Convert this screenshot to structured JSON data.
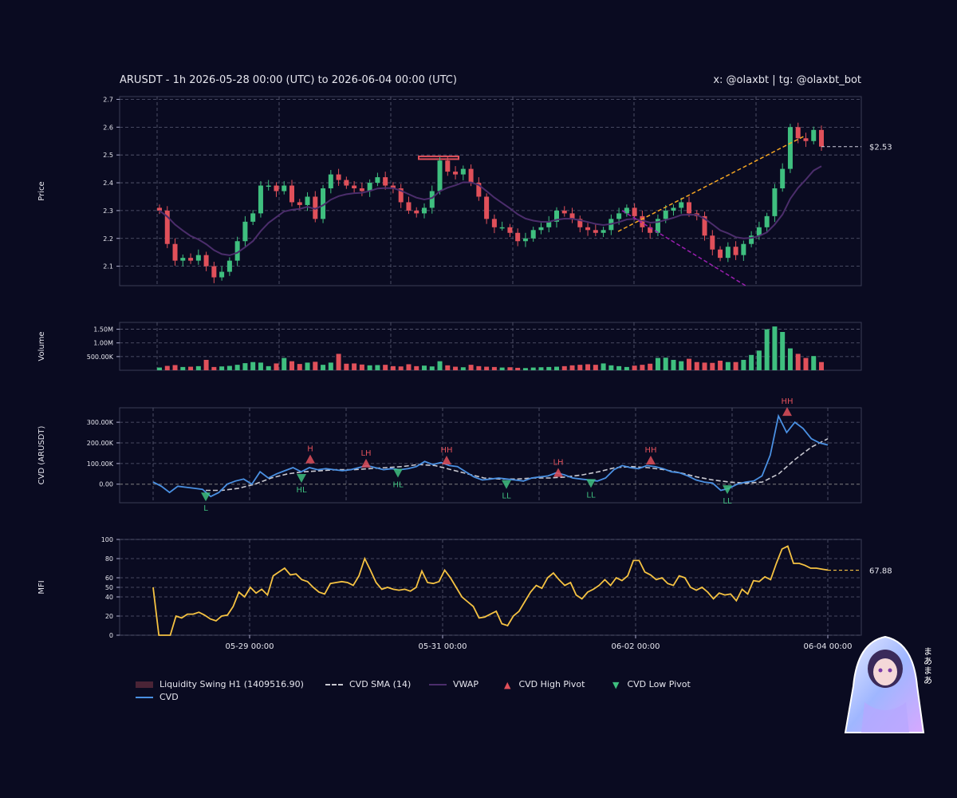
{
  "header": {
    "title": "ARUSDT - 1h 2026-05-28 00:00 (UTC) to 2026-06-04 00:00 (UTC)",
    "handle": "x: @olaxbt | tg: @olaxbt_bot"
  },
  "colors": {
    "background": "#0a0b21",
    "up": "#3fbf7f",
    "down": "#e0505a",
    "vwap": "#4b2d6b",
    "cvd": "#4a90e2",
    "cvd_sma": "#c8c8d0",
    "mfi": "#f5c242",
    "trend_up": "#f5a623",
    "trend_down": "#9b1fb0",
    "liquidity": "#6a2c3c"
  },
  "legend": [
    {
      "key": "liquidity",
      "label": "Liquidity Swing H1 (1409516.90)"
    },
    {
      "key": "cvd",
      "label": "CVD"
    },
    {
      "key": "cvd_sma",
      "label": "CVD SMA (14)"
    },
    {
      "key": "vwap",
      "label": "VWAP"
    },
    {
      "key": "cvd_high",
      "label": "CVD High Pivot"
    },
    {
      "key": "cvd_low",
      "label": "CVD Low Pivot"
    }
  ],
  "avatar_text": "まあまあ",
  "chart_data": [
    {
      "type": "candlestick",
      "panel": "price",
      "ylabel": "Price",
      "ylim": [
        2.03,
        2.71
      ],
      "yticks": [
        2.1,
        2.2,
        2.3,
        2.4,
        2.5,
        2.6,
        2.7
      ],
      "last_price_label": "$2.53",
      "last_price": 2.53,
      "x_start": "2026-05-28 00:00",
      "x_end": "2026-06-04 00:00",
      "interval_hours": 1,
      "closes_sample": [
        2.3,
        2.18,
        2.12,
        2.13,
        2.12,
        2.14,
        2.1,
        2.06,
        2.08,
        2.12,
        2.19,
        2.26,
        2.29,
        2.39,
        2.39,
        2.37,
        2.39,
        2.33,
        2.32,
        2.35,
        2.27,
        2.38,
        2.43,
        2.41,
        2.39,
        2.38,
        2.37,
        2.4,
        2.42,
        2.39,
        2.38,
        2.33,
        2.3,
        2.29,
        2.31,
        2.37,
        2.48,
        2.44,
        2.43,
        2.45,
        2.4,
        2.35,
        2.27,
        2.24,
        2.24,
        2.22,
        2.19,
        2.2,
        2.23,
        2.24,
        2.26,
        2.3,
        2.29,
        2.27,
        2.24,
        2.23,
        2.22,
        2.23,
        2.27,
        2.29,
        2.31,
        2.28,
        2.24,
        2.22,
        2.27,
        2.3,
        2.31,
        2.33,
        2.29,
        2.28,
        2.21,
        2.16,
        2.13,
        2.17,
        2.14,
        2.18,
        2.21,
        2.24,
        2.28,
        2.38,
        2.45,
        2.6,
        2.56,
        2.55,
        2.59,
        2.53
      ]
    },
    {
      "type": "bar",
      "panel": "volume",
      "ylabel": "Volume",
      "yticks_labels": [
        "500.00K",
        "1.00M",
        "1.50M"
      ],
      "yticks": [
        500000,
        1000000,
        1500000
      ],
      "ylim": [
        0,
        1750000
      ],
      "values_sample": [
        100000,
        160000,
        190000,
        120000,
        130000,
        150000,
        380000,
        120000,
        140000,
        160000,
        200000,
        260000,
        300000,
        280000,
        150000,
        250000,
        450000,
        330000,
        230000,
        280000,
        310000,
        200000,
        280000,
        600000,
        240000,
        250000,
        210000,
        180000,
        190000,
        200000,
        150000,
        140000,
        220000,
        150000,
        170000,
        140000,
        330000,
        180000,
        130000,
        110000,
        200000,
        150000,
        130000,
        120000,
        100000,
        110000,
        90000,
        80000,
        100000,
        110000,
        120000,
        130000,
        150000,
        180000,
        200000,
        220000,
        200000,
        250000,
        180000,
        150000,
        120000,
        170000,
        200000,
        240000,
        450000,
        460000,
        380000,
        330000,
        420000,
        300000,
        280000,
        270000,
        350000,
        300000,
        300000,
        380000,
        560000,
        720000,
        1500000,
        1600000,
        1400000,
        800000,
        600000,
        450000,
        520000,
        300000
      ]
    },
    {
      "type": "line",
      "panel": "cvd",
      "ylabel": "CVD (ARUSDT)",
      "yticks_labels": [
        "0.00",
        "100.00K",
        "200.00K",
        "300.00K"
      ],
      "yticks": [
        0,
        100000,
        200000,
        300000
      ],
      "ylim": [
        -90000,
        370000
      ],
      "series": [
        {
          "name": "CVD",
          "values_sample": [
            10000,
            -10000,
            -40000,
            -10000,
            -15000,
            -20000,
            -25000,
            -60000,
            -40000,
            0,
            15000,
            25000,
            0,
            60000,
            30000,
            50000,
            65000,
            80000,
            60000,
            80000,
            70000,
            75000,
            70000,
            65000,
            70000,
            80000,
            90000,
            80000,
            70000,
            75000,
            70000,
            75000,
            85000,
            110000,
            95000,
            105000,
            90000,
            85000,
            60000,
            35000,
            20000,
            25000,
            30000,
            25000,
            20000,
            15000,
            30000,
            35000,
            40000,
            55000,
            45000,
            30000,
            25000,
            20000,
            15000,
            30000,
            70000,
            90000,
            80000,
            75000,
            90000,
            85000,
            75000,
            60000,
            55000,
            40000,
            20000,
            10000,
            5000,
            -30000,
            -20000,
            0,
            10000,
            15000,
            40000,
            140000,
            330000,
            250000,
            300000,
            270000,
            220000,
            200000,
            190000
          ]
        },
        {
          "name": "CVD SMA (14)",
          "values_sample": [
            -30000,
            -30000,
            -20000,
            0,
            30000,
            50000,
            60000,
            65000,
            70000,
            70000,
            75000,
            80000,
            85000,
            95000,
            90000,
            70000,
            50000,
            30000,
            25000,
            25000,
            30000,
            30000,
            35000,
            45000,
            60000,
            80000,
            85000,
            80000,
            70000,
            55000,
            35000,
            20000,
            10000,
            5000,
            10000,
            50000,
            120000,
            180000,
            220000
          ]
        }
      ],
      "pivots": [
        {
          "label": "L",
          "type": "low",
          "value": -60000
        },
        {
          "label": "H",
          "type": "high",
          "value": 120000
        },
        {
          "label": "HL",
          "type": "low",
          "value": 30000
        },
        {
          "label": "LH",
          "type": "high",
          "value": 100000
        },
        {
          "label": "HL",
          "type": "low",
          "value": 55000
        },
        {
          "label": "HH",
          "type": "high",
          "value": 115000
        },
        {
          "label": "LL",
          "type": "low",
          "value": 0
        },
        {
          "label": "LH",
          "type": "high",
          "value": 55000
        },
        {
          "label": "LL",
          "type": "low",
          "value": 5000
        },
        {
          "label": "HH",
          "type": "high",
          "value": 115000
        },
        {
          "label": "LL",
          "type": "low",
          "value": -25000
        },
        {
          "label": "HH",
          "type": "high",
          "value": 350000
        }
      ]
    },
    {
      "type": "line",
      "panel": "mfi",
      "ylabel": "MFI",
      "yticks": [
        0,
        20,
        40,
        50,
        60,
        80,
        100
      ],
      "ylim": [
        0,
        100
      ],
      "last_value_label": "67.88",
      "last_value": 67.88,
      "values_sample": [
        50,
        0,
        0,
        0,
        20,
        18,
        22,
        22,
        24,
        21,
        17,
        15,
        20,
        21,
        30,
        45,
        40,
        50,
        44,
        48,
        42,
        62,
        66,
        70,
        63,
        64,
        58,
        56,
        50,
        45,
        43,
        54,
        55,
        56,
        55,
        52,
        62,
        80,
        68,
        55,
        48,
        50,
        48,
        47,
        48,
        46,
        50,
        67,
        55,
        54,
        56,
        68,
        60,
        50,
        40,
        35,
        30,
        18,
        19,
        22,
        25,
        12,
        10,
        20,
        25,
        35,
        45,
        52,
        49,
        60,
        65,
        58,
        52,
        55,
        42,
        38,
        45,
        48,
        52,
        58,
        52,
        60,
        57,
        62,
        78,
        78,
        66,
        63,
        58,
        60,
        54,
        52,
        62,
        60,
        50,
        47,
        50,
        45,
        38,
        44,
        42,
        43,
        36,
        48,
        43,
        57,
        56,
        61,
        58,
        75,
        90,
        93,
        75,
        75,
        73,
        70,
        70,
        69,
        68
      ]
    }
  ],
  "xaxis": {
    "ticks": [
      "05-29 00:00",
      "05-31 00:00",
      "06-02 00:00",
      "06-04 00:00"
    ]
  }
}
